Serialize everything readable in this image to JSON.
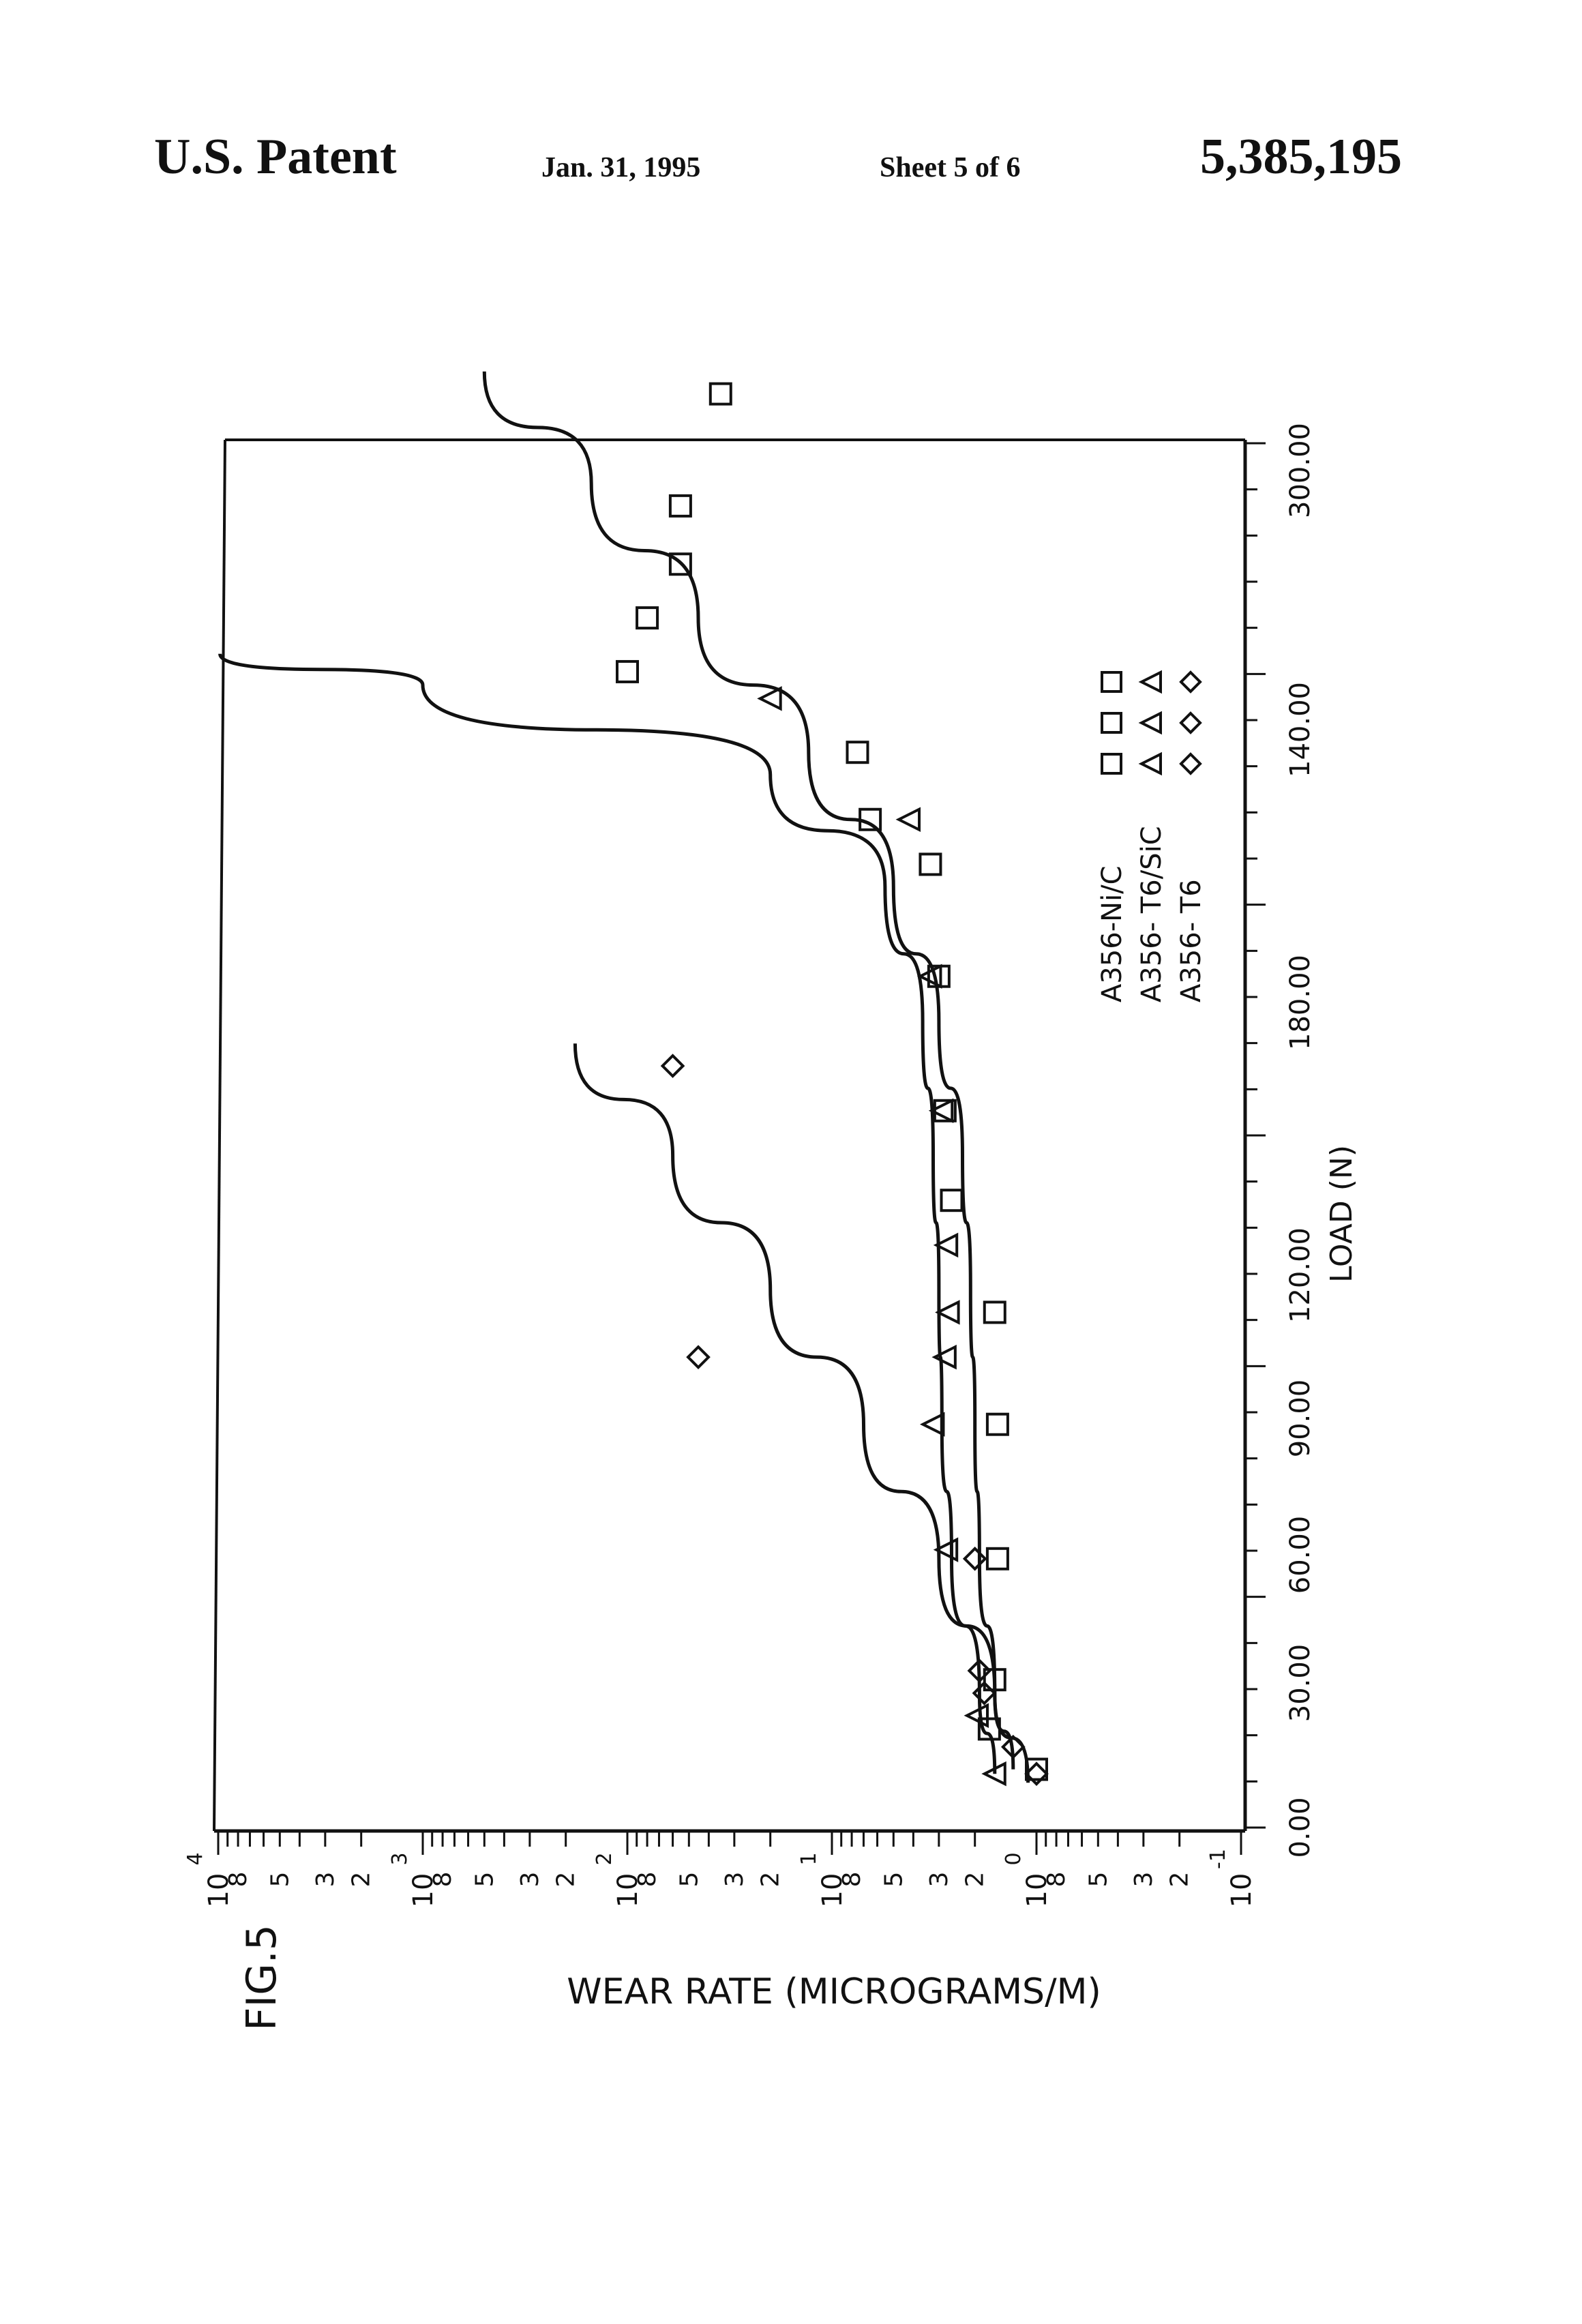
{
  "header": {
    "title": "U.S. Patent",
    "date": "Jan. 31, 1995",
    "sheet": "Sheet 5 of 6",
    "patent_number": "5,385,195"
  },
  "figure_label": "FIG.5",
  "chart_data": {
    "type": "scatter",
    "orientation": "rotated 90° counter-clockwise (load axis along the bottom, wear-rate axis along the left)",
    "xlabel": "LOAD (N)",
    "ylabel": "WEAR RATE (MICROGRAMS/M)",
    "x_ticks": [
      "0.00",
      "30.00",
      "60.00",
      "90.00",
      "120.00",
      "180.00",
      "140.00",
      "300.00"
    ],
    "y_scale": "log",
    "y_decades": [
      {
        "base": "10",
        "exp": "4"
      },
      {
        "base": "10",
        "exp": "3"
      },
      {
        "base": "10",
        "exp": "2"
      },
      {
        "base": "10",
        "exp": "1"
      },
      {
        "base": "10",
        "exp": "0"
      },
      {
        "base": "10",
        "exp": "-1"
      }
    ],
    "y_minor_labels": [
      "8",
      "5",
      "3",
      "2"
    ],
    "legend_position": "upper-right",
    "series": [
      {
        "name": "A356-Ni/C",
        "marker": "square",
        "points": [
          [
            13,
            1.0
          ],
          [
            22,
            1.7
          ],
          [
            33,
            1.6
          ],
          [
            60,
            1.55
          ],
          [
            90,
            1.55
          ],
          [
            115,
            1.6
          ],
          [
            140,
            2.6
          ],
          [
            160,
            2.8
          ],
          [
            190,
            3.0
          ],
          [
            215,
            3.3
          ],
          [
            225,
            6.5
          ],
          [
            240,
            7.5
          ],
          [
            258,
            100
          ],
          [
            270,
            80
          ],
          [
            282,
            55
          ],
          [
            295,
            55
          ],
          [
            320,
            35
          ]
        ],
        "fit_curve": [
          [
            13,
            1.3
          ],
          [
            30,
            1.6
          ],
          [
            60,
            1.9
          ],
          [
            90,
            2.0
          ],
          [
            120,
            2.1
          ],
          [
            150,
            2.3
          ],
          [
            180,
            3.0
          ],
          [
            210,
            5.0
          ],
          [
            240,
            13
          ],
          [
            270,
            45
          ],
          [
            300,
            150
          ],
          [
            325,
            500
          ]
        ]
      },
      {
        "name": "A356- T6/SiC",
        "marker": "triangle",
        "points": [
          [
            12,
            1.6
          ],
          [
            25,
            1.95
          ],
          [
            62,
            2.75
          ],
          [
            90,
            3.2
          ],
          [
            105,
            2.8
          ],
          [
            115,
            2.7
          ],
          [
            130,
            2.75
          ],
          [
            160,
            2.9
          ],
          [
            190,
            3.3
          ],
          [
            225,
            4.2
          ],
          [
            252,
            20
          ]
        ],
        "fit_curve": [
          [
            12,
            1.6
          ],
          [
            30,
            1.9
          ],
          [
            60,
            2.6
          ],
          [
            90,
            2.9
          ],
          [
            120,
            3.0
          ],
          [
            150,
            3.2
          ],
          [
            180,
            3.6
          ],
          [
            210,
            5.5
          ],
          [
            235,
            20
          ],
          [
            255,
            1000
          ],
          [
            262,
            9800
          ]
        ]
      },
      {
        "name": "A356- T6",
        "marker": "diamond",
        "points": [
          [
            12,
            1.0
          ],
          [
            18,
            1.3
          ],
          [
            30,
            1.8
          ],
          [
            35,
            1.9
          ],
          [
            60,
            2.0
          ],
          [
            105,
            45
          ],
          [
            170,
            60
          ]
        ],
        "fit_curve": [
          [
            10,
            1.1
          ],
          [
            30,
            1.6
          ],
          [
            60,
            3.0
          ],
          [
            90,
            7
          ],
          [
            120,
            20
          ],
          [
            150,
            60
          ],
          [
            175,
            180
          ]
        ]
      }
    ]
  }
}
